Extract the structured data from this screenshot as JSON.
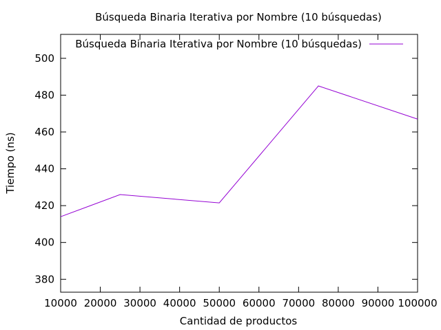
{
  "chart_data": {
    "type": "line",
    "title": "Búsqueda Binaria Iterativa por Nombre (10 búsquedas)",
    "xlabel": "Cantidad de productos",
    "ylabel": "Tiempo (ns)",
    "xlim": [
      10000,
      100000
    ],
    "ylim": [
      373,
      513
    ],
    "xticks": [
      10000,
      20000,
      30000,
      40000,
      50000,
      60000,
      70000,
      80000,
      90000,
      100000
    ],
    "yticks": [
      380,
      400,
      420,
      440,
      460,
      480,
      500
    ],
    "grid": false,
    "legend_position": "top-right",
    "series": [
      {
        "name": "Búsqueda Binaria Iterativa por Nombre (10 búsquedas)",
        "color": "#9400d3",
        "x": [
          10000,
          25000,
          50000,
          75000,
          100000
        ],
        "y": [
          414,
          426,
          421.5,
          485,
          467
        ]
      }
    ]
  }
}
